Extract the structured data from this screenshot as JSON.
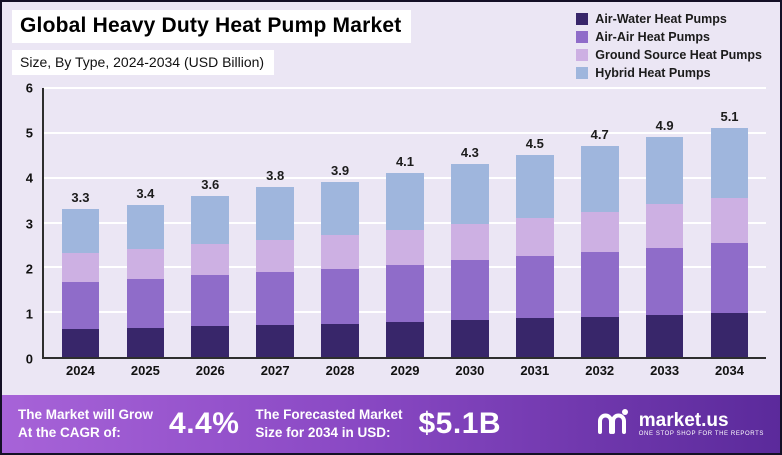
{
  "header": {
    "title": "Global Heavy Duty Heat Pump Market",
    "subtitle": "Size, By Type, 2024-2034 (USD Billion)"
  },
  "colors": {
    "page_bg": "#ebe6f4",
    "gridline": "#ffffff",
    "axis": "#2e2e2e",
    "footer_gradient_start": "#a763d8",
    "footer_gradient_mid": "#8a49c4",
    "footer_gradient_end": "#5b2a9b"
  },
  "chart_data": {
    "type": "bar",
    "stacked": true,
    "title": "Global Heavy Duty Heat Pump Market Size, By Type, 2024-2034 (USD Billion)",
    "categories": [
      "2024",
      "2025",
      "2026",
      "2027",
      "2028",
      "2029",
      "2030",
      "2031",
      "2032",
      "2033",
      "2034"
    ],
    "series": [
      {
        "name": "Air-Water Heat Pumps",
        "color": "#38266a",
        "values": [
          0.62,
          0.65,
          0.68,
          0.71,
          0.74,
          0.78,
          0.82,
          0.86,
          0.9,
          0.94,
          0.99
        ]
      },
      {
        "name": "Air-Air Heat Pumps",
        "color": "#8f6cc9",
        "values": [
          1.05,
          1.09,
          1.14,
          1.19,
          1.23,
          1.28,
          1.34,
          1.4,
          1.45,
          1.5,
          1.56
        ]
      },
      {
        "name": "Ground Source Heat Pumps",
        "color": "#cdb0e3",
        "values": [
          0.66,
          0.67,
          0.7,
          0.72,
          0.75,
          0.78,
          0.81,
          0.85,
          0.89,
          0.97,
          1.0
        ]
      },
      {
        "name": "Hybrid Heat Pumps",
        "color": "#9fb6dd",
        "values": [
          0.97,
          0.99,
          1.08,
          1.18,
          1.18,
          1.26,
          1.33,
          1.39,
          1.46,
          1.49,
          1.55
        ]
      }
    ],
    "totals": [
      3.3,
      3.4,
      3.6,
      3.8,
      3.9,
      4.1,
      4.3,
      4.5,
      4.7,
      4.9,
      5.1
    ],
    "ylim": [
      0,
      6
    ],
    "yticks": [
      0,
      1,
      2,
      3,
      4,
      5,
      6
    ],
    "grid": true,
    "legend_position": "top-right"
  },
  "footer": {
    "cagr_label_line1": "The Market will Grow",
    "cagr_label_line2": "At the CAGR of:",
    "cagr_value": "4.4%",
    "forecast_label_line1": "The Forecasted Market",
    "forecast_label_line2": "Size for 2034 in USD:",
    "forecast_value": "$5.1B",
    "brand_name": "market.us",
    "brand_tagline": "ONE STOP SHOP FOR THE REPORTS",
    "brand_icon": "market-us-logo-icon"
  }
}
